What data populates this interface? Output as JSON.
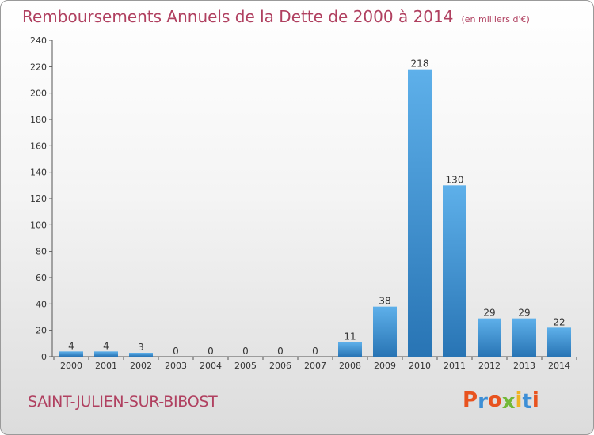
{
  "header": {
    "title": "Remboursements Annuels de la Dette de 2000 à 2014",
    "unit": "(en milliers d'€)"
  },
  "footer": {
    "commune": "SAINT-JULIEN-SUR-BIBOST",
    "logo_letters": [
      "P",
      "r",
      "o",
      "x",
      "i",
      "t",
      "i"
    ]
  },
  "colors": {
    "bar_light": "#5eb0ea",
    "bar_dark": "#2874b4",
    "title": "#b04060",
    "logo": [
      "#e8531f",
      "#3d8fd6",
      "#e8531f",
      "#72b837",
      "#f0b323",
      "#3d8fd6",
      "#e8531f"
    ]
  },
  "chart_data": {
    "type": "bar",
    "categories": [
      "2000",
      "2001",
      "2002",
      "2003",
      "2004",
      "2005",
      "2006",
      "2007",
      "2008",
      "2009",
      "2010",
      "2011",
      "2012",
      "2013",
      "2014"
    ],
    "values": [
      4,
      4,
      3,
      0,
      0,
      0,
      0,
      0,
      11,
      38,
      218,
      130,
      29,
      29,
      22
    ],
    "title": "Remboursements Annuels de la Dette de 2000 à 2014",
    "ylabel": "",
    "xlabel": "",
    "ylim": [
      0,
      240
    ],
    "yticks": [
      0,
      20,
      40,
      60,
      80,
      100,
      120,
      140,
      160,
      180,
      200,
      220,
      240
    ],
    "grid": false,
    "show_value_labels": true
  }
}
